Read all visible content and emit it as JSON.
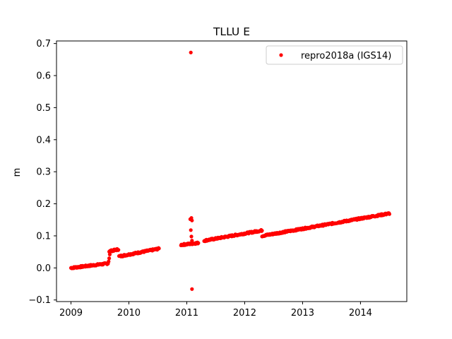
{
  "chart_data": {
    "type": "scatter",
    "title": "TLLU E",
    "xlabel": "",
    "ylabel": "m",
    "xlim": [
      2008.75,
      2014.8
    ],
    "ylim": [
      -0.105,
      0.708
    ],
    "x_ticks": [
      "2009",
      "2010",
      "2011",
      "2012",
      "2013",
      "2014"
    ],
    "y_ticks": [
      "−0.1",
      "0.0",
      "0.1",
      "0.2",
      "0.3",
      "0.4",
      "0.5",
      "0.6",
      "0.7"
    ],
    "grid": false,
    "legend": {
      "placement": "top-right",
      "entries": [
        "repro2018a (IGS14)"
      ]
    },
    "colors": {
      "series": "#ff0000"
    },
    "series": [
      {
        "name": "repro2018a (IGS14)",
        "segments": [
          {
            "x_start": 2009.0,
            "x_end": 2009.64,
            "y_start": 0.0,
            "y_end": 0.014
          },
          {
            "x_start": 2009.66,
            "x_end": 2009.82,
            "y_start": 0.052,
            "y_end": 0.058
          },
          {
            "x_start": 2009.83,
            "x_end": 2010.52,
            "y_start": 0.036,
            "y_end": 0.06
          },
          {
            "x_start": 2010.9,
            "x_end": 2011.2,
            "y_start": 0.072,
            "y_end": 0.078
          },
          {
            "x_start": 2011.3,
            "x_end": 2012.3,
            "y_start": 0.085,
            "y_end": 0.117
          },
          {
            "x_start": 2012.3,
            "x_end": 2014.5,
            "y_start": 0.1,
            "y_end": 0.17
          }
        ],
        "points": [
          {
            "x": 2009.65,
            "y": 0.02
          },
          {
            "x": 2009.66,
            "y": 0.03
          },
          {
            "x": 2009.67,
            "y": 0.042
          },
          {
            "x": 2011.07,
            "y": 0.672
          },
          {
            "x": 2011.06,
            "y": 0.152
          },
          {
            "x": 2011.08,
            "y": 0.156
          },
          {
            "x": 2011.09,
            "y": 0.148
          },
          {
            "x": 2011.07,
            "y": 0.118
          },
          {
            "x": 2011.08,
            "y": 0.098
          },
          {
            "x": 2011.09,
            "y": 0.085
          },
          {
            "x": 2011.09,
            "y": -0.066
          }
        ]
      }
    ]
  }
}
